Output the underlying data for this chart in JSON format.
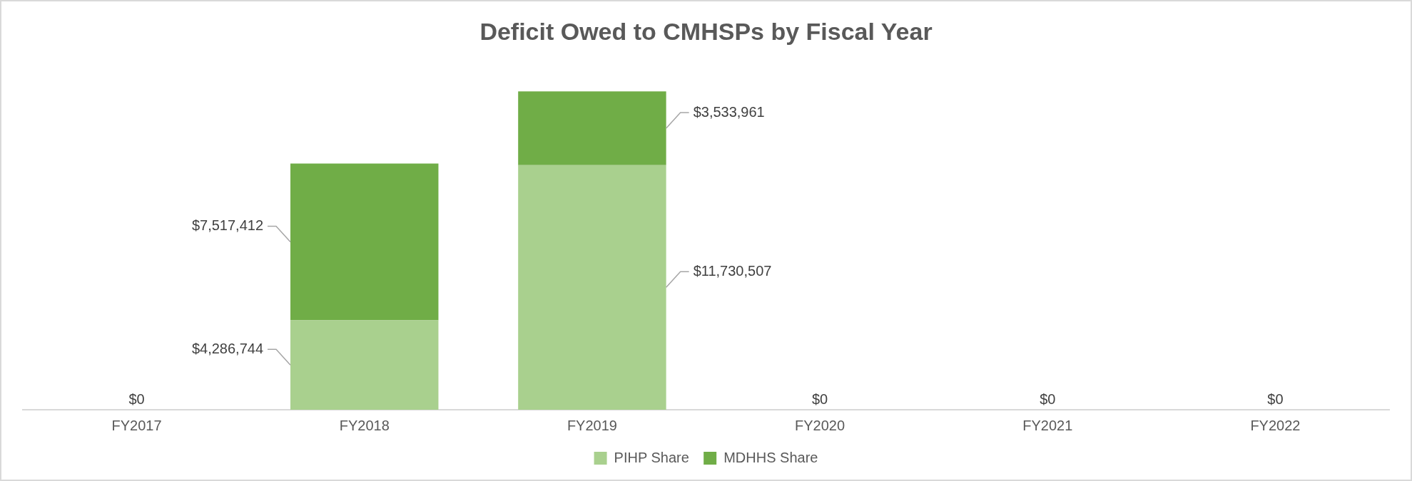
{
  "chart_data": {
    "type": "bar",
    "title": "Deficit Owed to CMHSPs by Fiscal Year",
    "stacked": true,
    "categories": [
      "FY2017",
      "FY2018",
      "FY2019",
      "FY2020",
      "FY2021",
      "FY2022"
    ],
    "series": [
      {
        "name": "PIHP Share",
        "color": "#a9d08e",
        "values": [
          0,
          4286744,
          11730507,
          0,
          0,
          0
        ],
        "value_labels": [
          "$0",
          "$4,286,744",
          "$11,730,507",
          "$0",
          "$0",
          "$0"
        ]
      },
      {
        "name": "MDHHS Share",
        "color": "#70ad47",
        "values": [
          0,
          7517412,
          3533961,
          0,
          0,
          0
        ],
        "value_labels": [
          null,
          "$7,517,412",
          "$3,533,961",
          null,
          null,
          null
        ]
      }
    ],
    "tick_labels": "x",
    "legend": "bottom"
  }
}
